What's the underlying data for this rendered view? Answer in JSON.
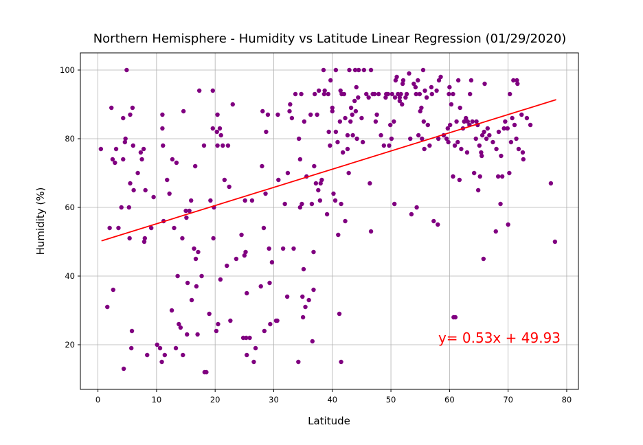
{
  "chart_data": {
    "type": "scatter",
    "title": "Northern Hemisphere - Humidity vs Latitude Linear Regression (01/29/2020)",
    "xlabel": "Latitude",
    "ylabel": "Humidity (%)",
    "xlim": [
      -3,
      82
    ],
    "ylim": [
      7,
      105
    ],
    "xticks": [
      0,
      10,
      20,
      30,
      40,
      50,
      60,
      70,
      80
    ],
    "yticks": [
      20,
      40,
      60,
      80,
      100
    ],
    "grid": true,
    "marker_color": "#800080",
    "line_color": "#ff0000",
    "equation": "y= 0.53x + 49.93",
    "regression": {
      "slope": 0.53,
      "intercept": 49.93,
      "x_range": [
        0.6,
        78.2
      ]
    },
    "points": [
      [
        0.5,
        77
      ],
      [
        1.6,
        31
      ],
      [
        2.0,
        54
      ],
      [
        2.3,
        89
      ],
      [
        2.5,
        74
      ],
      [
        2.6,
        36
      ],
      [
        2.9,
        73
      ],
      [
        3.1,
        77
      ],
      [
        3.5,
        54
      ],
      [
        4.0,
        60
      ],
      [
        4.3,
        74
      ],
      [
        4.3,
        86
      ],
      [
        4.4,
        13
      ],
      [
        4.6,
        79
      ],
      [
        4.7,
        80
      ],
      [
        4.9,
        100
      ],
      [
        5.3,
        60
      ],
      [
        5.4,
        51
      ],
      [
        5.5,
        67
      ],
      [
        5.5,
        87
      ],
      [
        5.7,
        19
      ],
      [
        5.8,
        24
      ],
      [
        5.9,
        89
      ],
      [
        6.0,
        78
      ],
      [
        6.1,
        65
      ],
      [
        6.8,
        70
      ],
      [
        7.3,
        76
      ],
      [
        7.5,
        74
      ],
      [
        7.8,
        77
      ],
      [
        7.9,
        50
      ],
      [
        8.0,
        51
      ],
      [
        8.1,
        65
      ],
      [
        8.4,
        17
      ],
      [
        9.1,
        54
      ],
      [
        9.5,
        63
      ],
      [
        10.1,
        20
      ],
      [
        10.6,
        19
      ],
      [
        10.9,
        15
      ],
      [
        11.0,
        83
      ],
      [
        11.0,
        87
      ],
      [
        11.1,
        78
      ],
      [
        11.2,
        56
      ],
      [
        11.4,
        17
      ],
      [
        11.8,
        68
      ],
      [
        12.2,
        64
      ],
      [
        12.6,
        30
      ],
      [
        12.7,
        74
      ],
      [
        13.0,
        54
      ],
      [
        13.3,
        19
      ],
      [
        13.4,
        73
      ],
      [
        13.6,
        40
      ],
      [
        13.8,
        26
      ],
      [
        14.1,
        25
      ],
      [
        14.4,
        51
      ],
      [
        14.5,
        17
      ],
      [
        14.6,
        88
      ],
      [
        15.0,
        59
      ],
      [
        15.1,
        57
      ],
      [
        15.2,
        23
      ],
      [
        15.3,
        38
      ],
      [
        15.6,
        59
      ],
      [
        15.9,
        62
      ],
      [
        16.0,
        33
      ],
      [
        16.4,
        48
      ],
      [
        16.6,
        72
      ],
      [
        16.7,
        45
      ],
      [
        16.8,
        37
      ],
      [
        17.0,
        23
      ],
      [
        17.1,
        47
      ],
      [
        17.3,
        94
      ],
      [
        17.7,
        40
      ],
      [
        18.1,
        78
      ],
      [
        18.2,
        12
      ],
      [
        18.5,
        12
      ],
      [
        19.0,
        29
      ],
      [
        19.2,
        62
      ],
      [
        19.6,
        83
      ],
      [
        19.6,
        94
      ],
      [
        19.7,
        51
      ],
      [
        19.8,
        60
      ],
      [
        20.2,
        24
      ],
      [
        20.3,
        82
      ],
      [
        20.4,
        87
      ],
      [
        20.4,
        78
      ],
      [
        20.5,
        26
      ],
      [
        20.8,
        83
      ],
      [
        20.9,
        39
      ],
      [
        21.0,
        81
      ],
      [
        21.3,
        78
      ],
      [
        21.6,
        68
      ],
      [
        22.0,
        43
      ],
      [
        22.2,
        78
      ],
      [
        22.4,
        66
      ],
      [
        22.6,
        27
      ],
      [
        23.0,
        90
      ],
      [
        23.6,
        45
      ],
      [
        24.5,
        52
      ],
      [
        24.8,
        22
      ],
      [
        25.0,
        46
      ],
      [
        25.1,
        62
      ],
      [
        25.2,
        47
      ],
      [
        25.3,
        22
      ],
      [
        25.4,
        35
      ],
      [
        25.4,
        17
      ],
      [
        25.9,
        22
      ],
      [
        26.3,
        62
      ],
      [
        26.6,
        15
      ],
      [
        26.9,
        19
      ],
      [
        27.8,
        37
      ],
      [
        28.0,
        72
      ],
      [
        28.1,
        88
      ],
      [
        28.3,
        54
      ],
      [
        28.4,
        24
      ],
      [
        28.6,
        64
      ],
      [
        28.7,
        82
      ],
      [
        29.0,
        87
      ],
      [
        29.2,
        48
      ],
      [
        29.3,
        38
      ],
      [
        29.4,
        26
      ],
      [
        29.7,
        44
      ],
      [
        30.4,
        27
      ],
      [
        30.6,
        27
      ],
      [
        30.7,
        87
      ],
      [
        30.8,
        68
      ],
      [
        31.6,
        48
      ],
      [
        31.9,
        61
      ],
      [
        32.3,
        34
      ],
      [
        32.4,
        70
      ],
      [
        32.7,
        88
      ],
      [
        32.8,
        90
      ],
      [
        33.1,
        86
      ],
      [
        33.4,
        48
      ],
      [
        33.7,
        93
      ],
      [
        34.2,
        15
      ],
      [
        34.3,
        80
      ],
      [
        34.5,
        60
      ],
      [
        34.5,
        74
      ],
      [
        34.7,
        93
      ],
      [
        34.8,
        61
      ],
      [
        34.9,
        34
      ],
      [
        35.0,
        28
      ],
      [
        35.1,
        42
      ],
      [
        35.2,
        85
      ],
      [
        35.4,
        31
      ],
      [
        35.6,
        69
      ],
      [
        36.0,
        33
      ],
      [
        36.3,
        87
      ],
      [
        36.5,
        61
      ],
      [
        36.6,
        21
      ],
      [
        36.8,
        47
      ],
      [
        36.8,
        36
      ],
      [
        36.9,
        72
      ],
      [
        37.0,
        93
      ],
      [
        37.2,
        67
      ],
      [
        37.4,
        87
      ],
      [
        37.6,
        65
      ],
      [
        37.7,
        94
      ],
      [
        37.9,
        62
      ],
      [
        38.0,
        67
      ],
      [
        38.2,
        68
      ],
      [
        38.5,
        100
      ],
      [
        38.6,
        93
      ],
      [
        38.7,
        94
      ],
      [
        39.1,
        58
      ],
      [
        39.3,
        93
      ],
      [
        39.4,
        82
      ],
      [
        39.6,
        78
      ],
      [
        39.7,
        97
      ],
      [
        40.0,
        89
      ],
      [
        40.0,
        88
      ],
      [
        40.2,
        64
      ],
      [
        40.5,
        62
      ],
      [
        40.6,
        100
      ],
      [
        40.6,
        82
      ],
      [
        40.9,
        79
      ],
      [
        41.0,
        52
      ],
      [
        41.2,
        29
      ],
      [
        41.3,
        85
      ],
      [
        41.4,
        94
      ],
      [
        41.5,
        61
      ],
      [
        41.5,
        15
      ],
      [
        41.6,
        93
      ],
      [
        41.8,
        76
      ],
      [
        42.0,
        93
      ],
      [
        42.2,
        56
      ],
      [
        42.2,
        86
      ],
      [
        42.6,
        81
      ],
      [
        42.6,
        77
      ],
      [
        42.8,
        70
      ],
      [
        42.9,
        100
      ],
      [
        43.1,
        85
      ],
      [
        43.2,
        89
      ],
      [
        43.4,
        87
      ],
      [
        43.5,
        81
      ],
      [
        43.8,
        91
      ],
      [
        43.9,
        100
      ],
      [
        44.0,
        88
      ],
      [
        44.1,
        95
      ],
      [
        44.2,
        80
      ],
      [
        44.4,
        92
      ],
      [
        44.5,
        100
      ],
      [
        45.0,
        86
      ],
      [
        45.2,
        79
      ],
      [
        45.4,
        100
      ],
      [
        45.8,
        93
      ],
      [
        46.2,
        92
      ],
      [
        46.4,
        67
      ],
      [
        46.6,
        53
      ],
      [
        46.6,
        100
      ],
      [
        46.9,
        93
      ],
      [
        47.2,
        93
      ],
      [
        47.4,
        85
      ],
      [
        47.6,
        87
      ],
      [
        47.9,
        93
      ],
      [
        48.3,
        81
      ],
      [
        48.8,
        78
      ],
      [
        49.1,
        92
      ],
      [
        49.2,
        93
      ],
      [
        49.5,
        93
      ],
      [
        49.7,
        78
      ],
      [
        49.9,
        84
      ],
      [
        50.1,
        80
      ],
      [
        50.2,
        93
      ],
      [
        50.5,
        85
      ],
      [
        50.6,
        61
      ],
      [
        50.7,
        92
      ],
      [
        50.8,
        97
      ],
      [
        51.0,
        98
      ],
      [
        51.2,
        93
      ],
      [
        51.5,
        91
      ],
      [
        51.5,
        92
      ],
      [
        51.7,
        93
      ],
      [
        51.9,
        90
      ],
      [
        52.0,
        96
      ],
      [
        52.1,
        97
      ],
      [
        52.5,
        92
      ],
      [
        52.7,
        93
      ],
      [
        53.1,
        99
      ],
      [
        53.3,
        80
      ],
      [
        53.5,
        58
      ],
      [
        53.9,
        96
      ],
      [
        54.2,
        95
      ],
      [
        54.3,
        93
      ],
      [
        54.4,
        60
      ],
      [
        54.6,
        97
      ],
      [
        54.7,
        81
      ],
      [
        54.9,
        93
      ],
      [
        55.0,
        88
      ],
      [
        55.2,
        89
      ],
      [
        55.3,
        80
      ],
      [
        55.5,
        100
      ],
      [
        55.6,
        85
      ],
      [
        55.7,
        77
      ],
      [
        55.8,
        94
      ],
      [
        56.1,
        92
      ],
      [
        56.3,
        84
      ],
      [
        56.6,
        78
      ],
      [
        56.9,
        95
      ],
      [
        57.0,
        93
      ],
      [
        57.3,
        56
      ],
      [
        57.8,
        94
      ],
      [
        58.0,
        55
      ],
      [
        58.1,
        80
      ],
      [
        58.2,
        97
      ],
      [
        58.5,
        98
      ],
      [
        59.0,
        81
      ],
      [
        59.5,
        80
      ],
      [
        59.7,
        83
      ],
      [
        59.8,
        79
      ],
      [
        59.9,
        93
      ],
      [
        60.0,
        95
      ],
      [
        60.1,
        84
      ],
      [
        60.3,
        90
      ],
      [
        60.6,
        69
      ],
      [
        60.6,
        93
      ],
      [
        60.7,
        28
      ],
      [
        60.9,
        78
      ],
      [
        61.0,
        28
      ],
      [
        61.2,
        85
      ],
      [
        61.4,
        79
      ],
      [
        61.5,
        97
      ],
      [
        61.7,
        68
      ],
      [
        61.8,
        89
      ],
      [
        62.0,
        77
      ],
      [
        62.3,
        83
      ],
      [
        62.5,
        85
      ],
      [
        62.8,
        86
      ],
      [
        63.0,
        76
      ],
      [
        63.1,
        85
      ],
      [
        63.4,
        84
      ],
      [
        63.5,
        93
      ],
      [
        63.7,
        97
      ],
      [
        63.9,
        85
      ],
      [
        64.2,
        70
      ],
      [
        64.5,
        80
      ],
      [
        64.6,
        85
      ],
      [
        64.8,
        84
      ],
      [
        64.9,
        65
      ],
      [
        65.1,
        78
      ],
      [
        65.2,
        69
      ],
      [
        65.4,
        76
      ],
      [
        65.5,
        75
      ],
      [
        65.6,
        81
      ],
      [
        65.8,
        45
      ],
      [
        65.9,
        82
      ],
      [
        66.0,
        96
      ],
      [
        66.3,
        80
      ],
      [
        66.5,
        83
      ],
      [
        66.8,
        81
      ],
      [
        67.4,
        79
      ],
      [
        67.9,
        53
      ],
      [
        68.0,
        77
      ],
      [
        68.3,
        69
      ],
      [
        68.4,
        82
      ],
      [
        68.7,
        61
      ],
      [
        68.8,
        75
      ],
      [
        69.0,
        69
      ],
      [
        69.3,
        83
      ],
      [
        69.5,
        85
      ],
      [
        69.9,
        83
      ],
      [
        70.0,
        55
      ],
      [
        70.2,
        70
      ],
      [
        70.3,
        93
      ],
      [
        70.5,
        79
      ],
      [
        70.7,
        86
      ],
      [
        70.9,
        97
      ],
      [
        71.1,
        84
      ],
      [
        71.4,
        80
      ],
      [
        71.5,
        97
      ],
      [
        71.6,
        96
      ],
      [
        71.8,
        77
      ],
      [
        72.3,
        87
      ],
      [
        72.5,
        76
      ],
      [
        72.6,
        74
      ],
      [
        73.2,
        86
      ],
      [
        73.8,
        84
      ],
      [
        77.3,
        67
      ],
      [
        78.0,
        50
      ]
    ]
  }
}
